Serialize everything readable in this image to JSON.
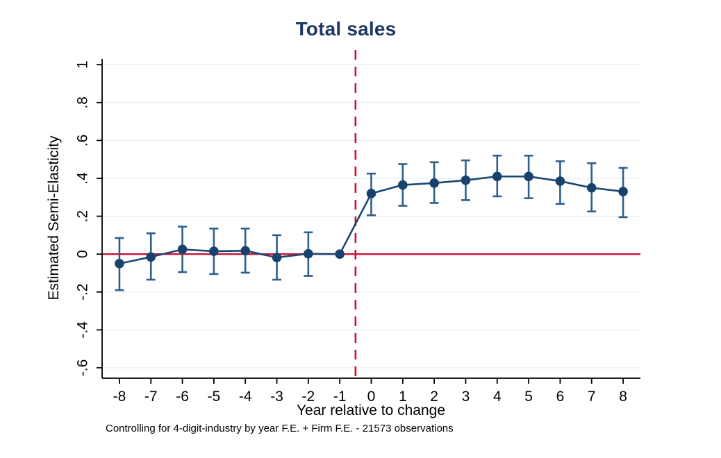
{
  "chart_data": {
    "type": "line",
    "title": "Total sales",
    "xlabel": "Year relative to change",
    "ylabel": "Estimated Semi-Elasticity",
    "note": "Controlling for 4-digit-industry by year F.E. + Firm  F.E. - 21573 observations",
    "x": [
      -8,
      -7,
      -6,
      -5,
      -4,
      -3,
      -2,
      -1,
      0,
      1,
      2,
      3,
      4,
      5,
      6,
      7,
      8
    ],
    "series": [
      {
        "name": "Estimated semi-elasticity",
        "values": [
          -0.05,
          -0.015,
          0.025,
          0.015,
          0.018,
          -0.018,
          0.002,
          0.0,
          0.32,
          0.365,
          0.375,
          0.39,
          0.41,
          0.41,
          0.385,
          0.35,
          0.33
        ],
        "ci_low": [
          -0.19,
          -0.135,
          -0.095,
          -0.105,
          -0.098,
          -0.135,
          -0.115,
          null,
          0.205,
          0.255,
          0.27,
          0.285,
          0.305,
          0.295,
          0.265,
          0.225,
          0.195
        ],
        "ci_high": [
          0.085,
          0.11,
          0.145,
          0.135,
          0.135,
          0.1,
          0.115,
          null,
          0.425,
          0.475,
          0.485,
          0.495,
          0.52,
          0.52,
          0.49,
          0.48,
          0.455
        ]
      }
    ],
    "reference_period": -1,
    "hline_y": 0,
    "vline_x": -0.5,
    "x_ticks": [
      "-8",
      "-7",
      "-6",
      "-5",
      "-4",
      "-3",
      "-2",
      "-1",
      "0",
      "1",
      "2",
      "3",
      "4",
      "5",
      "6",
      "7",
      "8"
    ],
    "x_tick_values": [
      -8,
      -7,
      -6,
      -5,
      -4,
      -3,
      -2,
      -1,
      0,
      1,
      2,
      3,
      4,
      5,
      6,
      7,
      8
    ],
    "y_ticks": [
      "1",
      ".8",
      ".6",
      ".4",
      ".2",
      "0",
      "-.2",
      "-.4",
      "-.6"
    ],
    "y_tick_values": [
      1,
      0.8,
      0.6,
      0.4,
      0.2,
      0,
      -0.2,
      -0.4,
      -0.6
    ],
    "xlim": [
      -8.55,
      8.55
    ],
    "ylim": [
      -0.655,
      1.03
    ],
    "grid": "horizontal",
    "legend": "none",
    "colors": {
      "series": "#1a476f",
      "marker": "#17426d",
      "ci": "#2e5f8a",
      "reference_red": "#cb1236",
      "gridline": "#e8f1f5",
      "title": "#1f3864",
      "axis": "#000000"
    }
  }
}
